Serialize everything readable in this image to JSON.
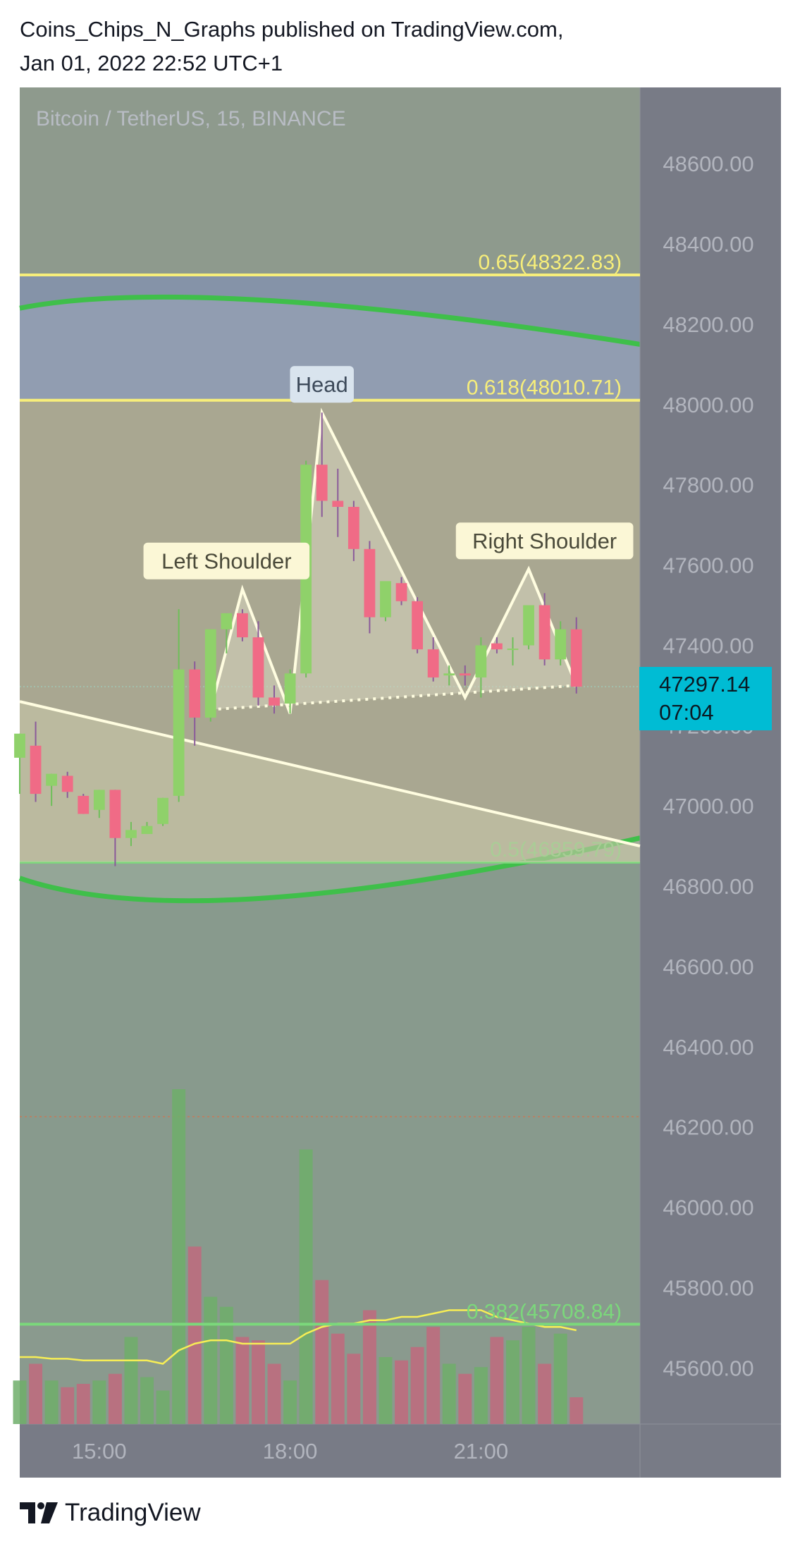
{
  "header": {
    "line1": "Coins_Chips_N_Graphs published on TradingView.com,",
    "line2": "Jan 01, 2022 22:52 UTC+1"
  },
  "footer": {
    "brand": "TradingView"
  },
  "last_price": {
    "value": "47297.14",
    "countdown": "07:04"
  },
  "colors": {
    "up": "#8fd16a",
    "down": "#f06b86",
    "fib_yellow": "#f7ee7a",
    "fib_green": "#7bd87b",
    "pattern": "#fffde0",
    "axis_bg": "#787b86",
    "last_price_bg": "#00bcd4",
    "ema": "#f7ee55"
  },
  "chart_data": {
    "type": "candlestick",
    "title": "Bitcoin / TetherUS, 15, BINANCE",
    "y_ticks": [
      "48600.00",
      "48400.00",
      "48200.00",
      "48000.00",
      "47800.00",
      "47600.00",
      "47400.00",
      "47200.00",
      "47000.00",
      "46800.00",
      "46600.00",
      "46400.00",
      "46200.00",
      "46000.00",
      "45800.00",
      "45600.00"
    ],
    "x_ticks": [
      "15:00",
      "18:00",
      "21:00"
    ],
    "ylim": [
      45460,
      48790
    ],
    "x_range": [
      "13:45",
      "23:30"
    ],
    "candles": [
      {
        "time": "13:45",
        "o": 47120,
        "h": 47180,
        "l": 47030,
        "c": 47180
      },
      {
        "time": "14:00",
        "o": 47150,
        "h": 47210,
        "l": 47010,
        "c": 47030
      },
      {
        "time": "14:15",
        "o": 47050,
        "h": 47080,
        "l": 47000,
        "c": 47080
      },
      {
        "time": "14:30",
        "o": 47075,
        "h": 47085,
        "l": 47020,
        "c": 47035
      },
      {
        "time": "14:45",
        "o": 47025,
        "h": 47030,
        "l": 46980,
        "c": 46980
      },
      {
        "time": "15:00",
        "o": 46990,
        "h": 47040,
        "l": 46970,
        "c": 47040
      },
      {
        "time": "15:15",
        "o": 47040,
        "h": 47040,
        "l": 46850,
        "c": 46920
      },
      {
        "time": "15:30",
        "o": 46920,
        "h": 46960,
        "l": 46900,
        "c": 46940
      },
      {
        "time": "15:45",
        "o": 46930,
        "h": 46960,
        "l": 46930,
        "c": 46950
      },
      {
        "time": "16:00",
        "o": 46955,
        "h": 47020,
        "l": 46950,
        "c": 47020
      },
      {
        "time": "16:15",
        "o": 47025,
        "h": 47490,
        "l": 47010,
        "c": 47340
      },
      {
        "time": "16:30",
        "o": 47340,
        "h": 47360,
        "l": 47150,
        "c": 47220
      },
      {
        "time": "16:45",
        "o": 47220,
        "h": 47440,
        "l": 47210,
        "c": 47440
      },
      {
        "time": "17:00",
        "o": 47440,
        "h": 47480,
        "l": 47380,
        "c": 47480
      },
      {
        "time": "17:15",
        "o": 47480,
        "h": 47490,
        "l": 47410,
        "c": 47420
      },
      {
        "time": "17:30",
        "o": 47420,
        "h": 47460,
        "l": 47250,
        "c": 47270
      },
      {
        "time": "17:45",
        "o": 47270,
        "h": 47300,
        "l": 47230,
        "c": 47250
      },
      {
        "time": "18:00",
        "o": 47255,
        "h": 47340,
        "l": 47230,
        "c": 47330
      },
      {
        "time": "18:15",
        "o": 47330,
        "h": 47860,
        "l": 47320,
        "c": 47850
      },
      {
        "time": "18:30",
        "o": 47850,
        "h": 47980,
        "l": 47720,
        "c": 47760
      },
      {
        "time": "18:45",
        "o": 47760,
        "h": 47840,
        "l": 47670,
        "c": 47745
      },
      {
        "time": "19:00",
        "o": 47745,
        "h": 47760,
        "l": 47610,
        "c": 47640
      },
      {
        "time": "19:15",
        "o": 47640,
        "h": 47660,
        "l": 47430,
        "c": 47470
      },
      {
        "time": "19:30",
        "o": 47470,
        "h": 47540,
        "l": 47460,
        "c": 47560
      },
      {
        "time": "19:45",
        "o": 47555,
        "h": 47570,
        "l": 47500,
        "c": 47510
      },
      {
        "time": "20:00",
        "o": 47510,
        "h": 47520,
        "l": 47380,
        "c": 47390
      },
      {
        "time": "20:15",
        "o": 47390,
        "h": 47420,
        "l": 47310,
        "c": 47320
      },
      {
        "time": "20:30",
        "o": 47325,
        "h": 47350,
        "l": 47300,
        "c": 47330
      },
      {
        "time": "20:45",
        "o": 47330,
        "h": 47350,
        "l": 47300,
        "c": 47325
      },
      {
        "time": "21:00",
        "o": 47320,
        "h": 47420,
        "l": 47270,
        "c": 47400
      },
      {
        "time": "21:15",
        "o": 47405,
        "h": 47420,
        "l": 47380,
        "c": 47390
      },
      {
        "time": "21:30",
        "o": 47390,
        "h": 47420,
        "l": 47350,
        "c": 47392
      },
      {
        "time": "21:45",
        "o": 47400,
        "h": 47500,
        "l": 47390,
        "c": 47500
      },
      {
        "time": "22:00",
        "o": 47500,
        "h": 47530,
        "l": 47350,
        "c": 47365
      },
      {
        "time": "22:15",
        "o": 47365,
        "h": 47460,
        "l": 47350,
        "c": 47440
      },
      {
        "time": "22:30",
        "o": 47440,
        "h": 47470,
        "l": 47280,
        "c": 47297
      }
    ],
    "volume_relative": [
      0.13,
      0.18,
      0.13,
      0.11,
      0.12,
      0.13,
      0.15,
      0.26,
      0.14,
      0.1,
      1.0,
      0.53,
      0.38,
      0.35,
      0.26,
      0.25,
      0.18,
      0.13,
      0.82,
      0.43,
      0.27,
      0.21,
      0.34,
      0.2,
      0.19,
      0.23,
      0.29,
      0.18,
      0.15,
      0.17,
      0.26,
      0.25,
      0.29,
      0.18,
      0.27,
      0.08
    ],
    "volume_ma_relative": [
      0.2,
      0.2,
      0.195,
      0.195,
      0.19,
      0.19,
      0.19,
      0.19,
      0.19,
      0.18,
      0.22,
      0.24,
      0.25,
      0.25,
      0.24,
      0.24,
      0.24,
      0.24,
      0.27,
      0.29,
      0.3,
      0.3,
      0.31,
      0.31,
      0.32,
      0.32,
      0.33,
      0.34,
      0.34,
      0.34,
      0.32,
      0.31,
      0.3,
      0.29,
      0.29,
      0.28
    ],
    "fib_levels": [
      {
        "label": "0.65(48322.83)",
        "price": 48322.83,
        "color": "yellow"
      },
      {
        "label": "0.618(48010.71)",
        "price": 48010.71,
        "color": "yellow"
      },
      {
        "label": "0.5(46859.79)",
        "price": 46859.79,
        "color": "green"
      },
      {
        "label": "0.382(45708.84)",
        "price": 45708.84,
        "color": "green"
      }
    ],
    "annotations": [
      {
        "label": "Head",
        "time": "18:30",
        "price": 47980
      },
      {
        "label": "Left Shoulder",
        "time": "17:00",
        "price": 47540
      },
      {
        "label": "Right Shoulder",
        "time": "22:00",
        "price": 47590
      }
    ],
    "pattern_points": [
      {
        "time": "16:45",
        "price": 47240
      },
      {
        "time": "17:15",
        "price": 47540
      },
      {
        "time": "18:00",
        "price": 47230
      },
      {
        "time": "18:30",
        "price": 47980
      },
      {
        "time": "20:45",
        "price": 47270
      },
      {
        "time": "21:45",
        "price": 47590
      },
      {
        "time": "22:30",
        "price": 47300
      }
    ],
    "neckline": [
      {
        "time": "16:45",
        "price": 47240
      },
      {
        "time": "22:30",
        "price": 47300
      }
    ],
    "trendline": [
      {
        "time": "13:45",
        "price": 47260
      },
      {
        "time": "23:30",
        "price": 46900
      }
    ],
    "cup_upper_curve": [
      {
        "time": "13:45",
        "price": 48240
      },
      {
        "time": "16:30",
        "price": 48260
      },
      {
        "time": "23:30",
        "price": 48150
      }
    ],
    "cup_lower_curve": [
      {
        "time": "13:45",
        "price": 46820
      },
      {
        "time": "16:30",
        "price": 46770
      },
      {
        "time": "23:30",
        "price": 46920
      }
    ]
  }
}
